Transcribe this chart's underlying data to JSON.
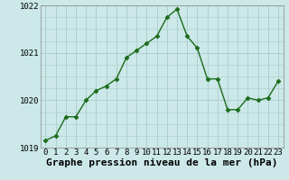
{
  "x": [
    0,
    1,
    2,
    3,
    4,
    5,
    6,
    7,
    8,
    9,
    10,
    11,
    12,
    13,
    14,
    15,
    16,
    17,
    18,
    19,
    20,
    21,
    22,
    23
  ],
  "y": [
    1019.15,
    1019.25,
    1019.65,
    1019.65,
    1020.0,
    1020.2,
    1020.3,
    1020.45,
    1020.9,
    1021.05,
    1021.2,
    1021.35,
    1021.75,
    1021.92,
    1021.35,
    1021.1,
    1020.45,
    1020.45,
    1019.8,
    1019.8,
    1020.05,
    1020.0,
    1020.05,
    1020.4
  ],
  "line_color": "#1a6b1a",
  "marker": "D",
  "marker_size": 2.5,
  "background_color": "#cce8e8",
  "grid_color": "#aacccc",
  "xlabel": "Graphe pression niveau de la mer (hPa)",
  "ylim": [
    1019.0,
    1022.0
  ],
  "xlim": [
    -0.5,
    23.5
  ],
  "yticks": [
    1019,
    1020,
    1021,
    1022
  ],
  "xticks": [
    0,
    1,
    2,
    3,
    4,
    5,
    6,
    7,
    8,
    9,
    10,
    11,
    12,
    13,
    14,
    15,
    16,
    17,
    18,
    19,
    20,
    21,
    22,
    23
  ],
  "xlabel_fontsize": 8,
  "tick_fontsize": 6.5,
  "line_width": 1.0
}
